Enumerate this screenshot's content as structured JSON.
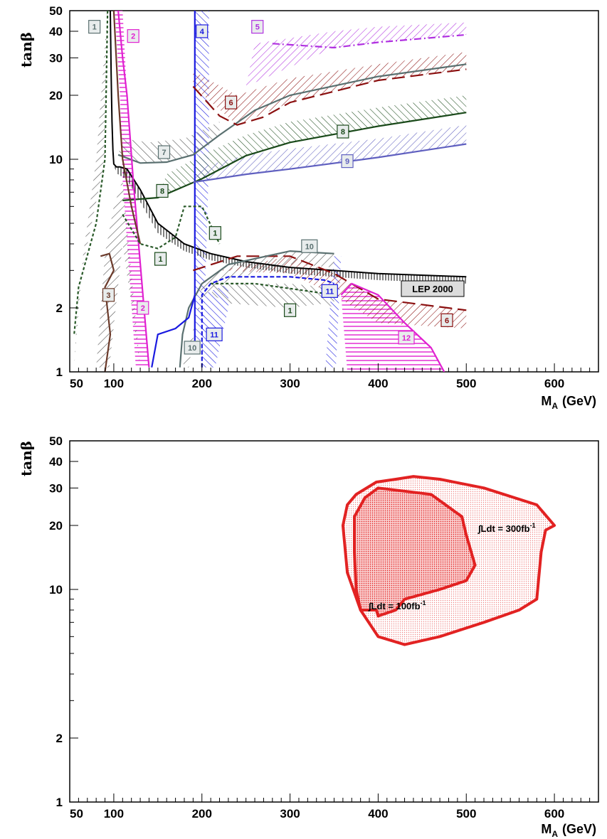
{
  "chart_data": [
    {
      "type": "line",
      "xlabel_main": "M",
      "xlabel_sub": "A",
      "xlabel_unit": "(GeV)",
      "ylabel": "tanβ",
      "xlim": [
        50,
        650
      ],
      "ylim": [
        1,
        50
      ],
      "yscale": "log",
      "x_ticks": [
        50,
        100,
        200,
        300,
        400,
        500,
        600
      ],
      "y_ticks": [
        1,
        2,
        10,
        20,
        30,
        40,
        50
      ],
      "colors": {
        "black": "#000000",
        "brown": "#6b3a2a",
        "magenta": "#e020d0",
        "blue": "#1a1ae0",
        "purple": "#b030e0",
        "darkred": "#8b1010",
        "slate": "#5a7070",
        "darkgreen": "#1a4a1a",
        "lavender": "#6060c0",
        "dashgreen": "#2a5a2a"
      },
      "annotation": "LEP 2000",
      "region_labels": [
        {
          "text": "1",
          "x": 78,
          "y": 42,
          "color": "slate"
        },
        {
          "text": "2",
          "x": 122,
          "y": 38,
          "color": "magenta"
        },
        {
          "text": "4",
          "x": 200,
          "y": 40,
          "color": "blue"
        },
        {
          "text": "5",
          "x": 263,
          "y": 42,
          "color": "purple"
        },
        {
          "text": "6",
          "x": 233,
          "y": 18.5,
          "color": "darkred"
        },
        {
          "text": "7",
          "x": 157,
          "y": 10.8,
          "color": "slate"
        },
        {
          "text": "8",
          "x": 360,
          "y": 13.5,
          "color": "darkgreen"
        },
        {
          "text": "9",
          "x": 365,
          "y": 9.8,
          "color": "lavender"
        },
        {
          "text": "8",
          "x": 155,
          "y": 7.1,
          "color": "darkgreen"
        },
        {
          "text": "1",
          "x": 215,
          "y": 4.5,
          "color": "darkgreen"
        },
        {
          "text": "1",
          "x": 153,
          "y": 3.4,
          "color": "darkgreen"
        },
        {
          "text": "10",
          "x": 322,
          "y": 3.9,
          "color": "slate"
        },
        {
          "text": "11",
          "x": 345,
          "y": 2.4,
          "color": "blue"
        },
        {
          "text": "3",
          "x": 94,
          "y": 2.3,
          "color": "brown"
        },
        {
          "text": "2",
          "x": 133,
          "y": 2.0,
          "color": "magenta"
        },
        {
          "text": "1",
          "x": 300,
          "y": 1.95,
          "color": "darkgreen"
        },
        {
          "text": "6",
          "x": 478,
          "y": 1.75,
          "color": "darkred"
        },
        {
          "text": "10",
          "x": 189,
          "y": 1.3,
          "color": "slate"
        },
        {
          "text": "11",
          "x": 214,
          "y": 1.5,
          "color": "blue"
        },
        {
          "text": "12",
          "x": 432,
          "y": 1.45,
          "color": "magenta"
        }
      ],
      "series": [
        {
          "color": "black",
          "x": [
            96,
            97,
            98,
            99,
            100,
            103,
            107,
            115,
            130,
            150,
            180,
            210,
            250,
            300,
            400,
            500
          ],
          "y": [
            50,
            25,
            15,
            11,
            9.5,
            9.2,
            9.2,
            9.0,
            7.2,
            5.0,
            4.0,
            3.6,
            3.3,
            3.1,
            2.9,
            2.8
          ]
        },
        {
          "color": "blue",
          "x": [
            192,
            192
          ],
          "y": [
            1.4,
            50
          ]
        },
        {
          "color": "darkgreen",
          "x": [
            110,
            150,
            200,
            250,
            300,
            400,
            500
          ],
          "y": [
            6.4,
            6.6,
            8.1,
            10.4,
            12.0,
            14.3,
            16.6
          ]
        },
        {
          "color": "lavender",
          "x": [
            190,
            250,
            300,
            400,
            500
          ],
          "y": [
            7.8,
            8.5,
            9.0,
            10.2,
            11.8
          ]
        },
        {
          "color": "slate",
          "x": [
            105,
            130,
            160,
            190,
            220,
            260,
            300,
            400,
            500
          ],
          "y": [
            10.5,
            9.6,
            9.7,
            10.5,
            13.0,
            17.0,
            20.0,
            24.5,
            28.0
          ]
        },
        {
          "color": "darkred",
          "x": [
            190,
            220,
            240,
            270,
            300,
            400,
            500
          ],
          "y": [
            22.0,
            16.0,
            14.5,
            15.8,
            18.5,
            23.5,
            26.5
          ]
        },
        {
          "color": "darkred",
          "x": [
            190,
            240,
            300,
            350,
            400,
            500
          ],
          "y": [
            3.0,
            3.5,
            3.5,
            2.9,
            2.2,
            1.95
          ]
        },
        {
          "color": "purple",
          "x": [
            280,
            350,
            400,
            500
          ],
          "y": [
            35.0,
            33.5,
            35.5,
            38.5
          ]
        },
        {
          "color": "slate",
          "x": [
            175,
            178,
            185,
            200,
            230,
            300,
            350
          ],
          "y": [
            1.05,
            1.5,
            2.0,
            2.6,
            3.2,
            3.7,
            3.6
          ]
        },
        {
          "color": "blue",
          "x": [
            143,
            150,
            170,
            185,
            192
          ],
          "y": [
            1.05,
            1.5,
            1.6,
            1.8,
            2.3
          ]
        },
        {
          "color": "blue",
          "x": [
            200,
            200,
            210,
            230,
            300,
            340,
            350
          ],
          "y": [
            1.05,
            2.3,
            2.6,
            2.8,
            2.8,
            2.7,
            2.6
          ]
        },
        {
          "color": "magenta",
          "x": [
            105,
            110,
            115,
            122,
            140
          ],
          "y": [
            50,
            30,
            20,
            8,
            1.05
          ]
        },
        {
          "color": "magenta",
          "x": [
            358,
            370,
            400,
            430,
            460,
            475
          ],
          "y": [
            2.3,
            2.6,
            2.3,
            1.7,
            1.3,
            1.0
          ]
        },
        {
          "color": "brown",
          "x": [
            100,
            105,
            110,
            120,
            130
          ],
          "y": [
            50,
            20,
            10,
            6,
            4
          ]
        },
        {
          "color": "brown",
          "x": [
            85,
            95,
            100,
            90,
            96,
            90
          ],
          "y": [
            3.5,
            3.6,
            3.0,
            2.5,
            1.5,
            1.0
          ]
        },
        {
          "color": "dashgreen",
          "x": [
            93,
            90,
            80,
            60,
            55
          ],
          "y": [
            50,
            10,
            5,
            2.5,
            1.5
          ]
        },
        {
          "color": "dashgreen",
          "x": [
            110,
            130,
            150,
            170,
            180,
            200,
            220
          ],
          "y": [
            5.5,
            4.0,
            3.8,
            4.3,
            6.0,
            6.0,
            4.0
          ]
        },
        {
          "color": "dashgreen",
          "x": [
            210,
            260,
            320,
            350
          ],
          "y": [
            2.6,
            2.6,
            2.4,
            2.3
          ]
        }
      ]
    },
    {
      "type": "area",
      "xlabel_main": "M",
      "xlabel_sub": "A",
      "xlabel_unit": "(GeV)",
      "ylabel": "tanβ",
      "xlim": [
        50,
        650
      ],
      "ylim": [
        1,
        50
      ],
      "yscale": "log",
      "x_ticks": [
        50,
        100,
        200,
        300,
        400,
        500,
        600
      ],
      "y_ticks": [
        1,
        2,
        10,
        20,
        30,
        40,
        50
      ],
      "fill_color": "#e22222",
      "series": [
        {
          "name": "∫Ldt = 300fb",
          "label_main": "∫Ldt = 300fb",
          "label_sup": "-1",
          "x": [
            365,
            375,
            398,
            420,
            440,
            470,
            520,
            580,
            600,
            590,
            585,
            580,
            560,
            520,
            470,
            430,
            400,
            380,
            365,
            360
          ],
          "y": [
            25,
            28,
            32,
            33,
            34,
            33,
            30,
            25,
            20,
            19,
            15,
            9,
            8,
            7,
            6,
            5.5,
            6,
            8,
            12,
            20
          ]
        },
        {
          "name": "∫Ldt = 100fb",
          "label_main": "∫Ldt = 100fb",
          "label_sup": "-1",
          "x": [
            373,
            385,
            400,
            460,
            495,
            500,
            510,
            500,
            470,
            430,
            420,
            400,
            398,
            380,
            375,
            373
          ],
          "y": [
            22,
            27,
            30,
            28,
            22,
            18,
            13,
            11,
            10,
            9,
            8,
            7.5,
            8,
            8,
            10,
            15
          ]
        }
      ]
    }
  ]
}
